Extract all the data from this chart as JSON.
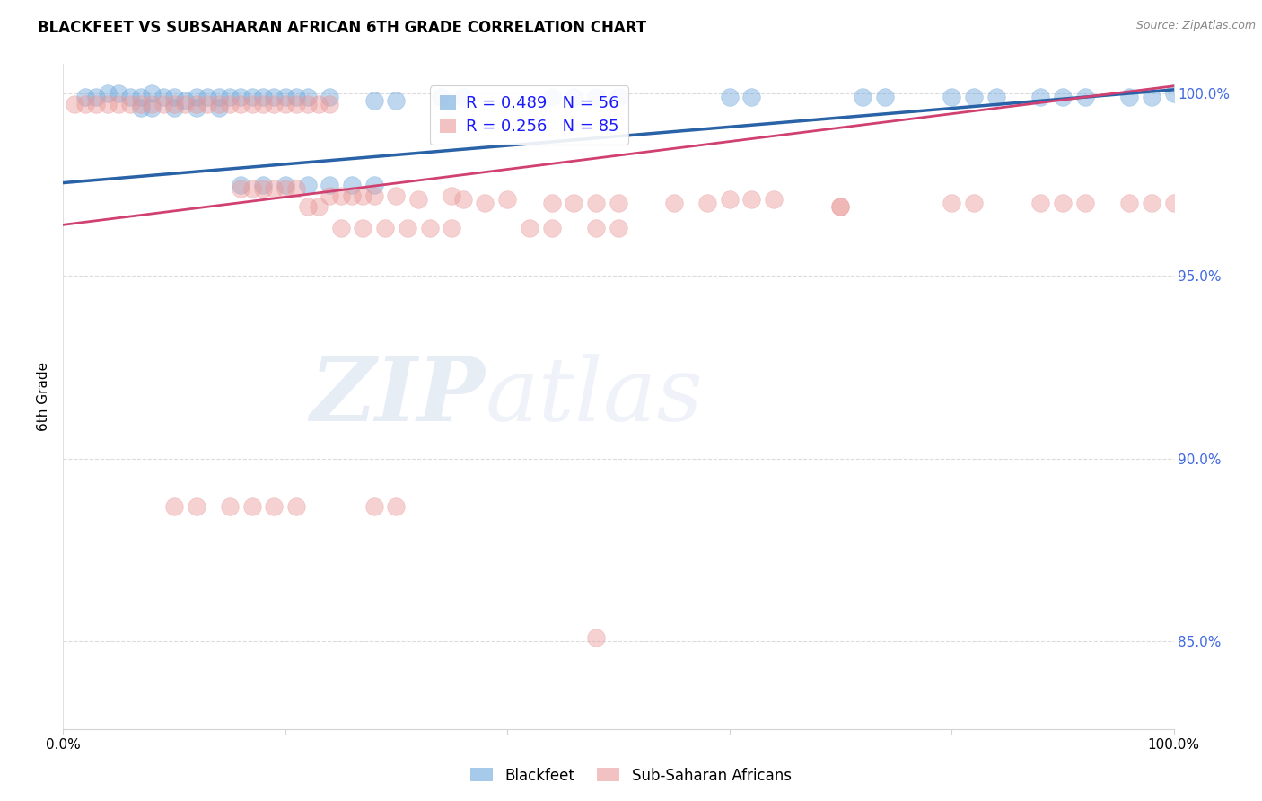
{
  "title": "BLACKFEET VS SUBSAHARAN AFRICAN 6TH GRADE CORRELATION CHART",
  "source": "Source: ZipAtlas.com",
  "ylabel": "6th Grade",
  "blue_R": 0.489,
  "blue_N": 56,
  "pink_R": 0.256,
  "pink_N": 85,
  "blue_color": "#6fa8dc",
  "pink_color": "#ea9999",
  "blue_line_color": "#2962a6",
  "pink_line_color": "#d04070",
  "blue_line_x0": 0.0,
  "blue_line_x1": 1.0,
  "blue_line_y0": 0.9755,
  "blue_line_y1": 1.001,
  "pink_line_x0": 0.0,
  "pink_line_x1": 1.0,
  "pink_line_y0": 0.964,
  "pink_line_y1": 1.002,
  "xmin": 0.0,
  "xmax": 1.0,
  "ymin": 0.826,
  "ymax": 1.008,
  "yticks": [
    0.85,
    0.9,
    0.95,
    1.0
  ],
  "ytick_labels": [
    "85.0%",
    "90.0%",
    "95.0%",
    "100.0%"
  ],
  "blue_scatter_x": [
    0.02,
    0.03,
    0.04,
    0.05,
    0.06,
    0.07,
    0.08,
    0.09,
    0.1,
    0.11,
    0.12,
    0.13,
    0.14,
    0.15,
    0.16,
    0.17,
    0.18,
    0.19,
    0.2,
    0.21,
    0.22,
    0.24,
    0.28,
    0.3,
    0.34,
    0.36,
    0.44,
    0.46,
    0.48,
    0.5,
    0.6,
    0.62,
    0.72,
    0.74,
    0.8,
    0.82,
    0.84,
    0.88,
    0.9,
    0.92,
    0.96,
    0.98,
    1.0,
    0.07,
    0.08,
    0.1,
    0.12,
    0.14,
    0.16,
    0.18,
    0.2,
    0.22,
    0.24,
    0.26,
    0.28
  ],
  "blue_scatter_y": [
    0.999,
    0.999,
    1.0,
    1.0,
    0.999,
    0.999,
    1.0,
    0.999,
    0.999,
    0.998,
    0.999,
    0.999,
    0.999,
    0.999,
    0.999,
    0.999,
    0.999,
    0.999,
    0.999,
    0.999,
    0.999,
    0.999,
    0.998,
    0.998,
    0.999,
    0.999,
    0.999,
    0.999,
    0.999,
    0.999,
    0.999,
    0.999,
    0.999,
    0.999,
    0.999,
    0.999,
    0.999,
    0.999,
    0.999,
    0.999,
    0.999,
    0.999,
    1.0,
    0.996,
    0.996,
    0.996,
    0.996,
    0.996,
    0.975,
    0.975,
    0.975,
    0.975,
    0.975,
    0.975,
    0.975
  ],
  "pink_scatter_x": [
    0.01,
    0.02,
    0.03,
    0.04,
    0.05,
    0.06,
    0.07,
    0.08,
    0.09,
    0.1,
    0.11,
    0.12,
    0.13,
    0.14,
    0.15,
    0.16,
    0.17,
    0.18,
    0.19,
    0.2,
    0.21,
    0.22,
    0.23,
    0.24,
    0.16,
    0.17,
    0.18,
    0.19,
    0.2,
    0.21,
    0.24,
    0.25,
    0.26,
    0.27,
    0.28,
    0.3,
    0.22,
    0.23,
    0.32,
    0.35,
    0.36,
    0.38,
    0.4,
    0.44,
    0.46,
    0.48,
    0.5,
    0.55,
    0.58,
    0.6,
    0.62,
    0.64,
    0.7,
    0.8,
    0.82,
    0.88,
    0.9,
    0.92,
    0.96,
    0.98,
    1.0,
    0.25,
    0.27,
    0.29,
    0.31,
    0.33,
    0.35,
    0.42,
    0.44,
    0.48,
    0.5,
    0.15,
    0.17,
    0.19,
    0.21,
    0.1,
    0.12,
    0.28,
    0.3,
    0.48,
    0.7
  ],
  "pink_scatter_y": [
    0.997,
    0.997,
    0.997,
    0.997,
    0.997,
    0.997,
    0.997,
    0.997,
    0.997,
    0.997,
    0.997,
    0.997,
    0.997,
    0.997,
    0.997,
    0.997,
    0.997,
    0.997,
    0.997,
    0.997,
    0.997,
    0.997,
    0.997,
    0.997,
    0.974,
    0.974,
    0.974,
    0.974,
    0.974,
    0.974,
    0.972,
    0.972,
    0.972,
    0.972,
    0.972,
    0.972,
    0.969,
    0.969,
    0.971,
    0.972,
    0.971,
    0.97,
    0.971,
    0.97,
    0.97,
    0.97,
    0.97,
    0.97,
    0.97,
    0.971,
    0.971,
    0.971,
    0.969,
    0.97,
    0.97,
    0.97,
    0.97,
    0.97,
    0.97,
    0.97,
    0.97,
    0.963,
    0.963,
    0.963,
    0.963,
    0.963,
    0.963,
    0.963,
    0.963,
    0.963,
    0.963,
    0.887,
    0.887,
    0.887,
    0.887,
    0.887,
    0.887,
    0.887,
    0.887,
    0.851,
    0.969
  ]
}
